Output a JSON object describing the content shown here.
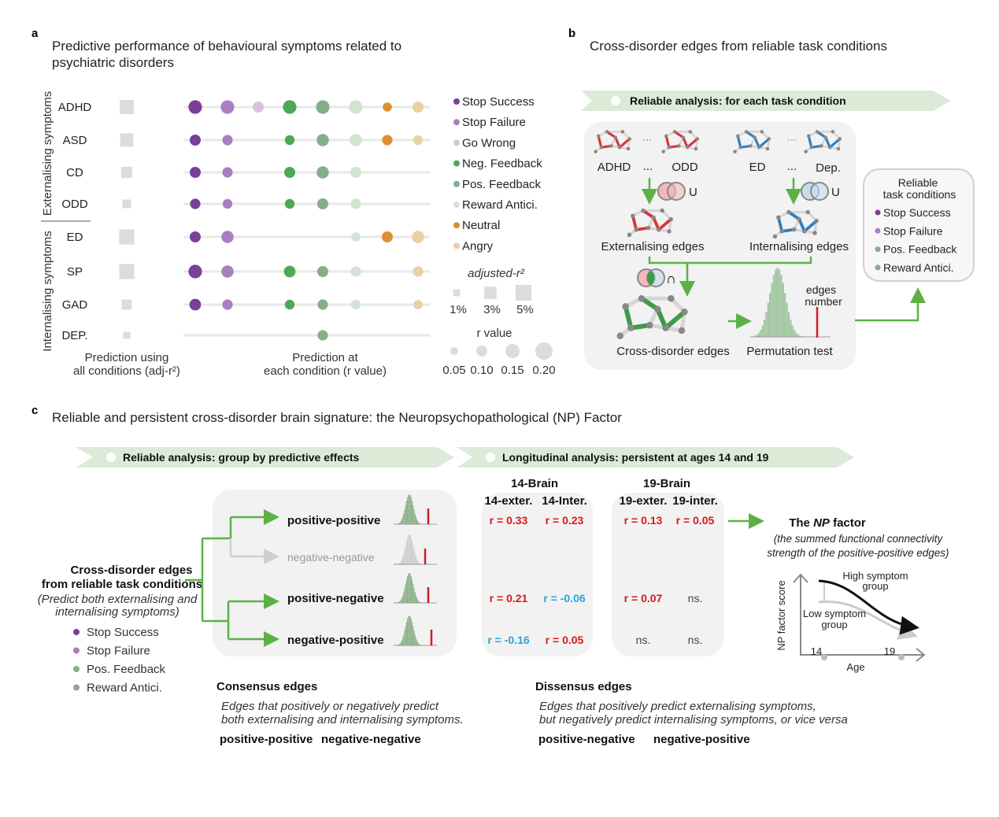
{
  "colors": {
    "stop_success": "#7b3f98",
    "stop_failure": "#a97fc2",
    "go_wrong": "#d8c1e2",
    "neg_feedback": "#4ca957",
    "pos_feedback": "#86ad8b",
    "reward_antici": "#d2e3d1",
    "neutral": "#dc8f32",
    "angry": "#e9d1a3",
    "banner": "#dcebd8",
    "arrow": "#5cb145",
    "ext_red": "#e0313a",
    "int_blue": "#2f7fc1",
    "positive_r": "#d7191c",
    "negative_r": "#2aa4dc"
  },
  "panel_a": {
    "letter": "a",
    "title_line1": "Predictive performance of behavioural symptoms related to",
    "title_line2": "psychiatric disorders",
    "group_ext": "Externalising symptoms",
    "group_int": "Internalising symptoms",
    "conditions": [
      "Stop Success",
      "Stop Failure",
      "Go Wrong",
      "Neg. Feedback",
      "Pos. Feedback",
      "Reward Antici.",
      "Neutral",
      "Angry"
    ],
    "condition_color_keys": [
      "stop_success",
      "stop_failure",
      "go_wrong",
      "neg_feedback",
      "pos_feedback",
      "reward_antici",
      "neutral",
      "angry"
    ],
    "rows": [
      {
        "label": "ADHD",
        "adj_r2_pct": 4.0,
        "r": [
          0.14,
          0.14,
          0.1,
          0.14,
          0.14,
          0.14,
          0.07,
          0.1
        ]
      },
      {
        "label": "ASD",
        "adj_r2_pct": 3.5,
        "r": [
          0.1,
          0.09,
          null,
          0.08,
          0.12,
          0.12,
          0.09,
          0.08
        ]
      },
      {
        "label": "CD",
        "adj_r2_pct": 2.5,
        "r": [
          0.1,
          0.09,
          null,
          0.1,
          0.12,
          0.1,
          null,
          null
        ]
      },
      {
        "label": "ODD",
        "adj_r2_pct": 1.5,
        "r": [
          0.09,
          0.08,
          null,
          0.08,
          0.1,
          0.09,
          null,
          null
        ]
      },
      {
        "label": "ED",
        "adj_r2_pct": 4.5,
        "r": [
          0.1,
          0.12,
          null,
          null,
          null,
          0.07,
          0.1,
          0.12
        ]
      },
      {
        "label": "SP",
        "adj_r2_pct": 4.5,
        "r": [
          0.14,
          0.12,
          null,
          0.11,
          0.1,
          0.09,
          null,
          0.09
        ]
      },
      {
        "label": "GAD",
        "adj_r2_pct": 2.0,
        "r": [
          0.11,
          0.09,
          null,
          0.08,
          0.09,
          0.08,
          null,
          0.07
        ]
      },
      {
        "label": "DEP.",
        "adj_r2_pct": 1.0,
        "r": [
          null,
          null,
          null,
          null,
          0.09,
          null,
          null,
          null
        ]
      }
    ],
    "adj_legend_title": "adjusted-r²",
    "adj_legend": [
      {
        "pct": 1,
        "label": "1%"
      },
      {
        "pct": 3,
        "label": "3%"
      },
      {
        "pct": 5,
        "label": "5%"
      }
    ],
    "r_legend_title": "r value",
    "r_legend": [
      {
        "r": 0.05,
        "label": "0.05"
      },
      {
        "r": 0.1,
        "label": "0.10"
      },
      {
        "r": 0.15,
        "label": "0.15"
      },
      {
        "r": 0.2,
        "label": "0.20"
      }
    ],
    "xlabel_left_1": "Prediction using",
    "xlabel_left_2": "all conditions (adj-r²)",
    "xlabel_mid_1": "Prediction at",
    "xlabel_mid_2": "each condition (r value)"
  },
  "panel_b": {
    "letter": "b",
    "title": "Cross-disorder edges from reliable task conditions",
    "banner": "Reliable analysis: for each task condition",
    "ext_labels": [
      "ADHD",
      "...",
      "ODD"
    ],
    "int_labels": [
      "ED",
      "...",
      "Dep."
    ],
    "union_symbol": "U",
    "intersect_symbol": "∩",
    "ext_edges": "Externalising edges",
    "int_edges": "Internalising edges",
    "cross_edges": "Cross-disorder edges",
    "perm_test": "Permutation test",
    "edges_number_1": "edges",
    "edges_number_2": "number",
    "reliable_title_1": "Reliable",
    "reliable_title_2": "task conditions",
    "reliable_conditions": [
      "Stop Success",
      "Stop Failure",
      "Pos. Feedback",
      "Reward Antici."
    ]
  },
  "panel_c": {
    "letter": "c",
    "title": "Reliable and persistent cross-disorder brain signature: the Neuropsychopathological (NP) Factor",
    "banner_left": "Reliable analysis: group by predictive effects",
    "banner_right": "Longitudinal analysis: persistent at ages 14 and 19",
    "source_1": "Cross-disorder edges",
    "source_2": "from reliable task conditions",
    "source_note_1": "(Predict both externalising and",
    "source_note_2": "internalising  symptoms)",
    "source_conditions": [
      "Stop Success",
      "Stop Failure",
      "Pos. Feedback",
      "Reward Antici."
    ],
    "groups": [
      "positive-positive",
      "negative-negative",
      "positive-negative",
      "negative-positive"
    ],
    "brain14": "14-Brain",
    "brain19": "19-Brain",
    "cols": [
      "14-exter.",
      "14-Inter.",
      "19-exter.",
      "19-inter."
    ],
    "results": [
      [
        "r = 0.33",
        "r = 0.23",
        "r = 0.13",
        "r = 0.05"
      ],
      [
        "r = 0.21",
        "r = -0.06",
        "r = 0.07",
        "ns."
      ],
      [
        "r = -0.16",
        "r = 0.05",
        "ns.",
        "ns."
      ]
    ],
    "np_title_pre": "The ",
    "np_title_em": "NP",
    "np_title_post": " factor",
    "np_desc_1": "(the summed functional connectivity",
    "np_desc_2": "strength of the positive-positive edges)",
    "np_chart": {
      "ylabel": "NP factor score",
      "xlabel": "Age",
      "x_ticks": [
        "14",
        "19"
      ],
      "high_1": "High symptom",
      "high_2": "group",
      "low_1": "Low symptom",
      "low_2": "group"
    },
    "consensus_title": "Consensus edges",
    "consensus_desc_1": "Edges that positively or negatively predict",
    "consensus_desc_2": "both externalising and internalising symptoms.",
    "consensus_types": [
      "positive-positive",
      "negative-negative"
    ],
    "dissensus_title": "Dissensus edges",
    "dissensus_desc_1": "Edges that positively predict externalising symptoms,",
    "dissensus_desc_2": "but negatively predict internalising symptoms, or vice versa",
    "dissensus_types": [
      "positive-negative",
      "negative-positive"
    ]
  }
}
